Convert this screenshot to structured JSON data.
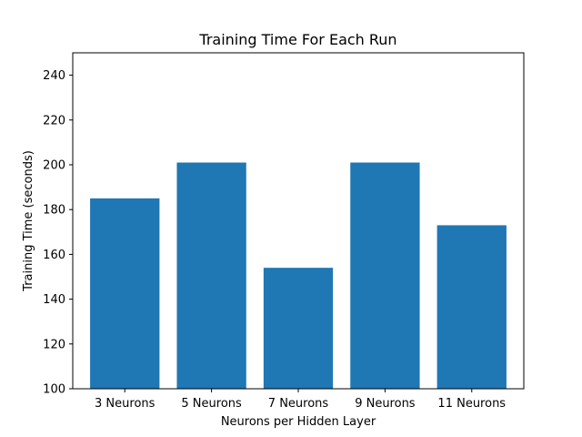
{
  "chart_data": {
    "type": "bar",
    "title": "Training Time For Each Run",
    "xlabel": "Neurons per Hidden Layer",
    "ylabel": "Training Time (seconds)",
    "categories": [
      "3 Neurons",
      "5 Neurons",
      "7 Neurons",
      "9 Neurons",
      "11 Neurons"
    ],
    "values": [
      185,
      201,
      154,
      201,
      173
    ],
    "ylim": [
      100,
      250
    ],
    "yticks": [
      100,
      120,
      140,
      160,
      180,
      200,
      220,
      240
    ],
    "grid": false,
    "bar_color": "#1f77b4"
  }
}
